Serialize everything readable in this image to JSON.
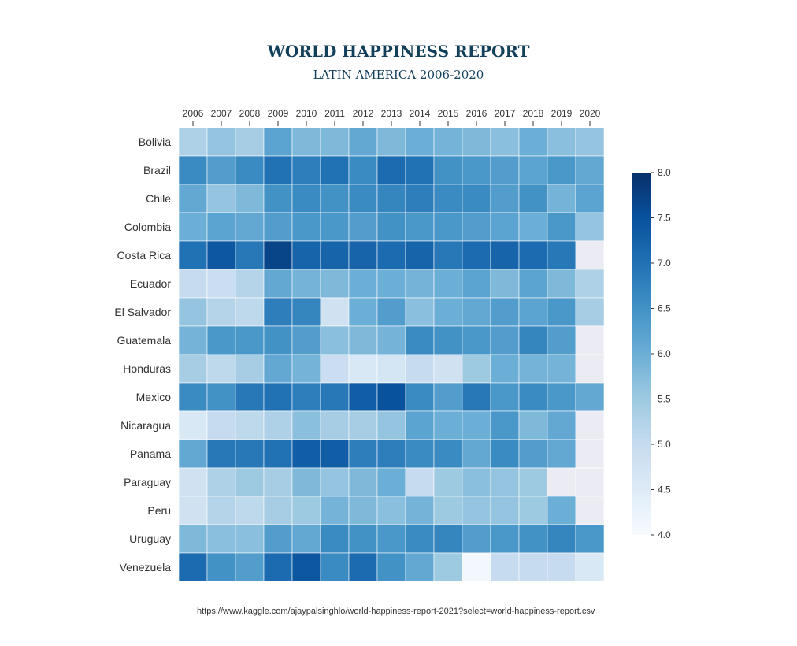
{
  "title": "WORLD HAPPINESS REPORT",
  "subtitle": "LATIN AMERICA 2006-2020",
  "source": "https://www.kaggle.com/ajaypalsinghlo/world-happiness-report-2021?select=world-happiness-report.csv",
  "chart_data": {
    "type": "heatmap",
    "x": [
      "2006",
      "2007",
      "2008",
      "2009",
      "2010",
      "2011",
      "2012",
      "2013",
      "2014",
      "2015",
      "2016",
      "2017",
      "2018",
      "2019",
      "2020"
    ],
    "y": [
      "Bolivia",
      "Brazil",
      "Chile",
      "Colombia",
      "Costa Rica",
      "Ecuador",
      "El Salvador",
      "Guatemala",
      "Honduras",
      "Mexico",
      "Nicaragua",
      "Panama",
      "Paraguay",
      "Peru",
      "Uruguay",
      "Venezuela"
    ],
    "values": [
      [
        5.3,
        5.6,
        5.4,
        6.2,
        5.8,
        5.8,
        6.1,
        5.8,
        6.0,
        5.9,
        5.8,
        5.7,
        6.0,
        5.7,
        5.6
      ],
      [
        6.6,
        6.3,
        6.6,
        7.0,
        6.8,
        7.0,
        6.6,
        7.1,
        7.0,
        6.5,
        6.4,
        6.3,
        6.2,
        6.4,
        6.1
      ],
      [
        6.1,
        5.6,
        5.8,
        6.5,
        6.6,
        6.5,
        6.6,
        6.7,
        6.8,
        6.6,
        6.6,
        6.3,
        6.5,
        5.9,
        6.2
      ],
      [
        6.0,
        6.2,
        6.1,
        6.3,
        6.4,
        6.4,
        6.3,
        6.5,
        6.4,
        6.4,
        6.3,
        6.2,
        6.0,
        6.4,
        5.6
      ],
      [
        7.0,
        7.4,
        6.9,
        7.7,
        7.2,
        7.2,
        7.2,
        7.1,
        7.2,
        6.9,
        7.1,
        7.2,
        7.1,
        6.9,
        4.3
      ],
      [
        5.0,
        4.9,
        5.2,
        6.1,
        5.9,
        5.8,
        6.0,
        6.0,
        5.9,
        6.0,
        6.2,
        5.8,
        6.2,
        5.8,
        5.3
      ],
      [
        5.6,
        5.2,
        5.1,
        6.8,
        6.7,
        4.8,
        6.0,
        6.3,
        5.7,
        6.0,
        6.1,
        6.3,
        6.2,
        6.4,
        5.4
      ],
      [
        5.9,
        6.4,
        6.4,
        6.5,
        6.3,
        5.7,
        5.8,
        5.9,
        6.6,
        6.5,
        6.4,
        6.3,
        6.7,
        6.3,
        4.3
      ],
      [
        5.4,
        5.1,
        5.4,
        6.1,
        5.9,
        4.9,
        4.6,
        4.7,
        5.0,
        4.8,
        5.5,
        6.0,
        5.9,
        5.9,
        4.3
      ],
      [
        6.6,
        6.5,
        6.9,
        7.0,
        6.8,
        6.9,
        7.3,
        7.5,
        6.6,
        6.3,
        6.9,
        6.4,
        6.6,
        6.4,
        6.1
      ],
      [
        4.6,
        5.0,
        5.1,
        5.3,
        5.7,
        5.4,
        5.4,
        5.6,
        6.2,
        6.0,
        6.0,
        6.4,
        5.8,
        6.1,
        4.3
      ],
      [
        6.1,
        6.9,
        6.9,
        7.0,
        7.3,
        7.3,
        6.8,
        6.8,
        6.6,
        6.6,
        6.1,
        6.6,
        6.3,
        6.1,
        4.3
      ],
      [
        4.8,
        5.3,
        5.5,
        5.4,
        5.8,
        5.6,
        5.8,
        6.0,
        5.0,
        5.5,
        5.7,
        5.6,
        5.5,
        4.3,
        4.3
      ],
      [
        4.8,
        5.2,
        5.1,
        5.4,
        5.5,
        5.9,
        5.8,
        5.7,
        5.9,
        5.5,
        5.6,
        5.6,
        5.5,
        6.0,
        4.3
      ],
      [
        5.8,
        5.7,
        5.7,
        6.3,
        6.1,
        6.6,
        6.5,
        6.4,
        6.6,
        6.7,
        6.3,
        6.4,
        6.5,
        6.7,
        6.4
      ],
      [
        7.1,
        6.5,
        6.3,
        7.1,
        7.4,
        6.6,
        7.1,
        6.5,
        6.1,
        5.5,
        4.1,
        5.0,
        5.0,
        5.0,
        4.6
      ]
    ],
    "colorbar": {
      "min": 4.0,
      "max": 8.0,
      "ticks": [
        "4.0",
        "4.5",
        "5.0",
        "5.5",
        "6.0",
        "6.5",
        "7.0",
        "7.5",
        "8.0"
      ]
    },
    "colorscale": [
      "#f7fbff",
      "#deebf7",
      "#c6dbef",
      "#9ecae1",
      "#6baed6",
      "#4292c6",
      "#2171b5",
      "#08519c",
      "#08306b"
    ],
    "missing_color": "#ebebf3",
    "x_axis_position": "top",
    "grid": false
  }
}
